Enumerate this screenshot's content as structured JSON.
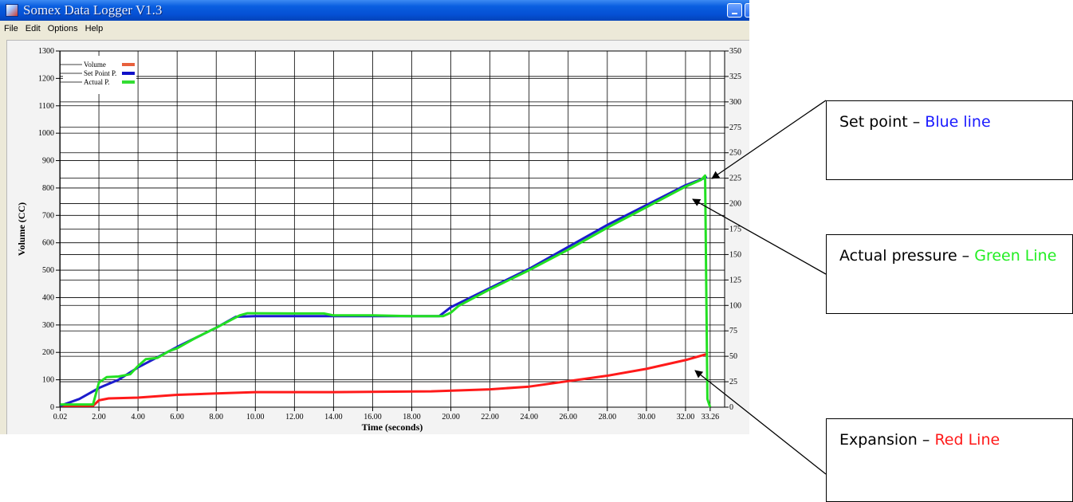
{
  "window": {
    "title": "Somex Data Logger V1.3",
    "menu": [
      "File",
      "Edit",
      "Options",
      "Help"
    ]
  },
  "chart_data": {
    "type": "line",
    "xlabel": "Time (seconds)",
    "ylabel": "Volume (CC)",
    "x_ticks": [
      "0.02",
      "2.00",
      "4.00",
      "6.00",
      "8.00",
      "10.00",
      "12.00",
      "14.00",
      "16.00",
      "18.00",
      "20.00",
      "22.00",
      "24.00",
      "26.00",
      "28.00",
      "30.00",
      "32.00",
      "33.26"
    ],
    "y_left_ticks": [
      "0",
      "100",
      "200",
      "300",
      "400",
      "500",
      "600",
      "700",
      "800",
      "900",
      "1000",
      "1100",
      "1200",
      "1300"
    ],
    "y_right_ticks": [
      "0",
      "25",
      "50",
      "75",
      "100",
      "125",
      "150",
      "175",
      "200",
      "225",
      "250",
      "275",
      "300",
      "325",
      "350"
    ],
    "xlim": [
      0,
      34
    ],
    "ylim_left": [
      0,
      1300
    ],
    "ylim_right": [
      0,
      350
    ],
    "grid": true,
    "legend_position": "top-left",
    "series": [
      {
        "name": "Volume",
        "legend_color": "#e8603c",
        "color": "#ff1a1a",
        "axis": "left",
        "points": [
          [
            0.02,
            5
          ],
          [
            1.7,
            5
          ],
          [
            2.0,
            25
          ],
          [
            2.5,
            32
          ],
          [
            4.0,
            35
          ],
          [
            6.0,
            45
          ],
          [
            8.0,
            50
          ],
          [
            10.0,
            55
          ],
          [
            14.0,
            55
          ],
          [
            19.0,
            58
          ],
          [
            22.0,
            65
          ],
          [
            24.0,
            75
          ],
          [
            26.0,
            95
          ],
          [
            28.0,
            115
          ],
          [
            30.0,
            140
          ],
          [
            32.0,
            172
          ],
          [
            33.15,
            195
          ]
        ]
      },
      {
        "name": "Set Point P.",
        "legend_color": "#1010c8",
        "color": "#1c1ccc",
        "axis": "left",
        "points": [
          [
            0.02,
            5
          ],
          [
            1.0,
            30
          ],
          [
            2.0,
            70
          ],
          [
            3.0,
            100
          ],
          [
            4.0,
            145
          ],
          [
            6.0,
            220
          ],
          [
            8.0,
            290
          ],
          [
            9.0,
            330
          ],
          [
            10.0,
            332
          ],
          [
            14.0,
            332
          ],
          [
            18.0,
            332
          ],
          [
            19.4,
            332
          ],
          [
            20.0,
            365
          ],
          [
            24.0,
            505
          ],
          [
            28.0,
            665
          ],
          [
            32.0,
            810
          ],
          [
            33.1,
            840
          ]
        ]
      },
      {
        "name": "Actual P.",
        "legend_color": "#33dd33",
        "color": "#22e022",
        "axis": "left",
        "points": [
          [
            0.02,
            10
          ],
          [
            1.7,
            10
          ],
          [
            2.0,
            90
          ],
          [
            2.4,
            110
          ],
          [
            3.0,
            112
          ],
          [
            3.6,
            120
          ],
          [
            4.0,
            150
          ],
          [
            4.4,
            175
          ],
          [
            5.0,
            180
          ],
          [
            5.6,
            205
          ],
          [
            6.0,
            215
          ],
          [
            7.0,
            255
          ],
          [
            8.0,
            290
          ],
          [
            9.2,
            335
          ],
          [
            9.6,
            343
          ],
          [
            12.0,
            342
          ],
          [
            13.5,
            342
          ],
          [
            14.0,
            335
          ],
          [
            16.0,
            335
          ],
          [
            18.0,
            332
          ],
          [
            19.6,
            332
          ],
          [
            20.0,
            345
          ],
          [
            20.4,
            370
          ],
          [
            22.0,
            430
          ],
          [
            24.0,
            500
          ],
          [
            26.0,
            575
          ],
          [
            28.0,
            655
          ],
          [
            30.0,
            730
          ],
          [
            32.0,
            805
          ],
          [
            32.8,
            830
          ],
          [
            33.0,
            845
          ],
          [
            33.12,
            30
          ],
          [
            33.26,
            0
          ]
        ]
      }
    ]
  },
  "annotations": [
    {
      "label": "Set point –",
      "colored_text": "Blue line",
      "color": "#1a1aff"
    },
    {
      "label": "Actual pressure –",
      "colored_text": "Green Line",
      "color": "#22ee22"
    },
    {
      "label": "Expansion –",
      "colored_text": "Red Line",
      "color": "#ff1a1a"
    }
  ]
}
